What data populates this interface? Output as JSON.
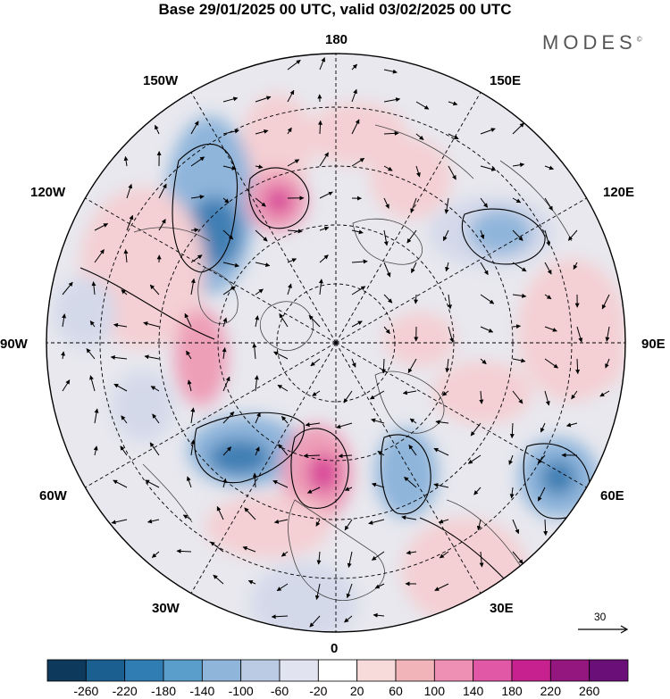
{
  "title": "Base 29/01/2025 00 UTC, valid 03/02/2025 00 UTC",
  "brand": "MODES",
  "brand_mark": "©",
  "longitude_labels": {
    "top": "180",
    "bottom": "0",
    "left": "90W",
    "right": "90E",
    "upper_left_150": "150W",
    "upper_right_150": "150E",
    "upper_left_120": "120W",
    "upper_right_120": "120E",
    "lower_left_60": "60W",
    "lower_right_60": "60E",
    "lower_left_30": "30W",
    "lower_right_30": "30E"
  },
  "reference_vector": "30",
  "colorbar": {
    "colors": [
      "#0d3a5c",
      "#1a5f8f",
      "#2f7db3",
      "#5a9fcb",
      "#8fb5db",
      "#bccbe4",
      "#e2e3f0",
      "#ffffff",
      "#f7dada",
      "#f0b4b9",
      "#ee8fb4",
      "#e159a6",
      "#c6218f",
      "#94167f",
      "#6a0f78"
    ],
    "labels": [
      "-260",
      "-220",
      "-180",
      "-140",
      "-100",
      "-60",
      "-20",
      "20",
      "60",
      "100",
      "140",
      "180",
      "220",
      "260"
    ]
  },
  "anomaly_colors": {
    "strong_negative": "#3f7fb4",
    "negative": "#8fb5db",
    "weak_negative": "#d4d9ea",
    "weak_positive": "#f4cfd3",
    "positive": "#ee9fb8",
    "strong_positive": "#d9489a"
  }
}
